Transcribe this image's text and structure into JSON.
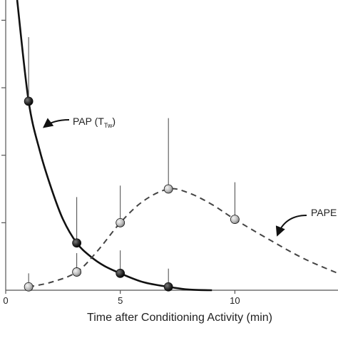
{
  "chart_data": {
    "type": "line",
    "title": "",
    "xlabel": "Time after Conditioning Activity (min)",
    "ylabel": "",
    "xlim": [
      0,
      14.5
    ],
    "ylim": [
      0,
      4.3
    ],
    "x_ticks": [
      0,
      5,
      10
    ],
    "x_tick_labels": [
      "0",
      "5",
      "10"
    ],
    "grid": false,
    "legend": "none",
    "annotations": {
      "pap_main": "PAP (T",
      "pap_sub": "Tw",
      "pap_close": ")",
      "pape": "PAPE"
    },
    "series": [
      {
        "name": "PAP (TTw)",
        "style": "solid",
        "color": "#111111",
        "marker_color": "#2a2a2a",
        "points": [
          {
            "x": 1.0,
            "y": 2.8,
            "err": 0.95
          },
          {
            "x": 3.1,
            "y": 0.7,
            "err": 0.68
          },
          {
            "x": 5.0,
            "y": 0.25,
            "err": 0.34
          },
          {
            "x": 7.1,
            "y": 0.05,
            "err": 0.27
          }
        ],
        "curve": [
          [
            0.5,
            4.3
          ],
          [
            1.0,
            2.8
          ],
          [
            1.5,
            2.05
          ],
          [
            2.0,
            1.5
          ],
          [
            2.5,
            1.05
          ],
          [
            3.1,
            0.7
          ],
          [
            3.7,
            0.5
          ],
          [
            4.3,
            0.36
          ],
          [
            5.0,
            0.25
          ],
          [
            6.0,
            0.12
          ],
          [
            7.1,
            0.05
          ],
          [
            8.0,
            0.01
          ],
          [
            9.0,
            0.0
          ]
        ]
      },
      {
        "name": "PAPE",
        "style": "dashed",
        "color": "#444444",
        "marker_color": "#bdbdbd",
        "points": [
          {
            "x": 1.0,
            "y": 0.05,
            "err": 0.2
          },
          {
            "x": 3.1,
            "y": 0.27,
            "err": 0.28
          },
          {
            "x": 5.0,
            "y": 1.0,
            "err": 0.55
          },
          {
            "x": 7.1,
            "y": 1.5,
            "err": 1.05
          },
          {
            "x": 10.0,
            "y": 1.05,
            "err": 0.55
          }
        ],
        "curve": [
          [
            1.0,
            0.05
          ],
          [
            2.0,
            0.12
          ],
          [
            3.1,
            0.27
          ],
          [
            4.0,
            0.58
          ],
          [
            5.0,
            1.0
          ],
          [
            6.0,
            1.32
          ],
          [
            7.1,
            1.5
          ],
          [
            8.0,
            1.44
          ],
          [
            9.0,
            1.27
          ],
          [
            10.0,
            1.05
          ],
          [
            11.5,
            0.75
          ],
          [
            13.0,
            0.47
          ],
          [
            14.5,
            0.25
          ]
        ]
      }
    ],
    "pointers": [
      {
        "series": "PAP (TTw)",
        "target": [
          1.5,
          2.4
        ]
      },
      {
        "series": "PAPE",
        "target": [
          11.8,
          0.78
        ]
      }
    ]
  }
}
